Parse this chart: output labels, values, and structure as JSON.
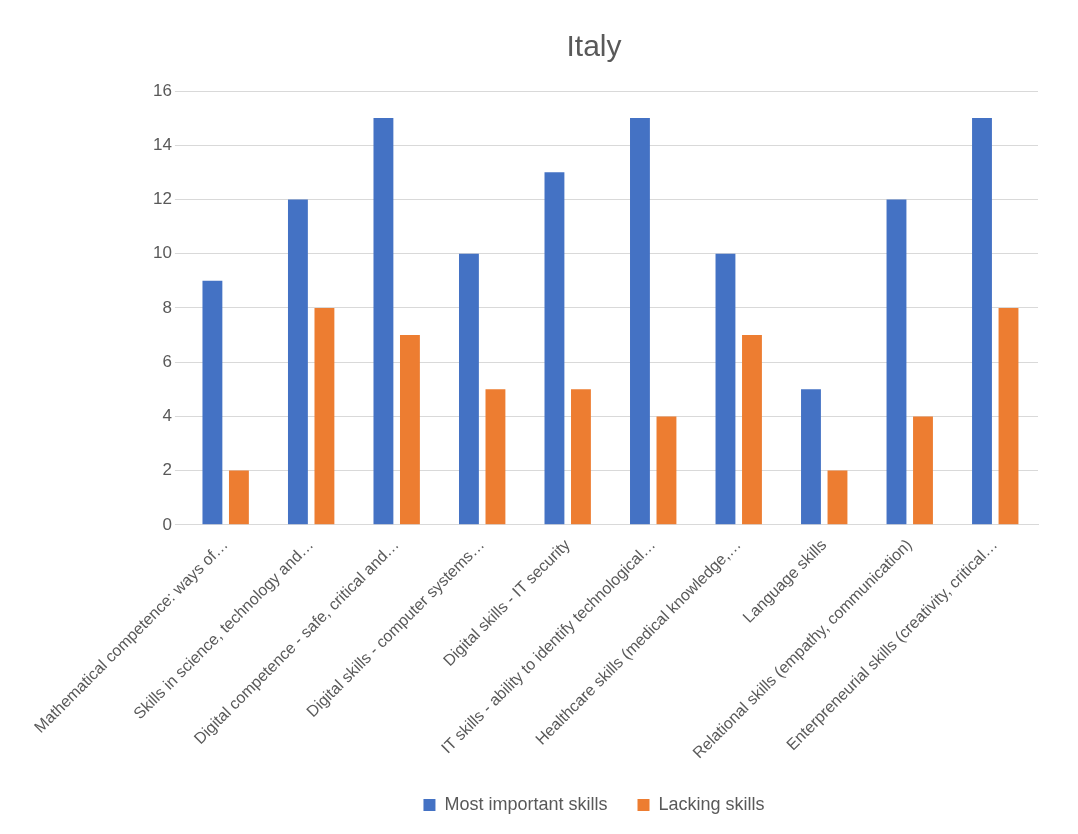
{
  "chart_data": {
    "type": "bar",
    "title": "Italy",
    "categories": [
      "Mathematical competence: ways of…",
      "Skills in science, technology and…",
      "Digital competence - safe, critical and…",
      "Digital skills - computer systems…",
      "Digital skills - IT security",
      "IT skills - ability to identify technological…",
      "Healthcare skills (medical knowledge,…",
      "Language skills",
      "Relational skills (empathy, communication)",
      "Enterpreneurial skills (creativity, critical…"
    ],
    "series": [
      {
        "name": "Most important skills",
        "color": "#4472c4",
        "values": [
          9,
          12,
          15,
          10,
          13,
          15,
          10,
          5,
          12,
          15
        ]
      },
      {
        "name": "Lacking skills",
        "color": "#ed7d31",
        "values": [
          2,
          8,
          7,
          5,
          5,
          4,
          7,
          2,
          4,
          8
        ]
      }
    ],
    "ylim": [
      0,
      16
    ],
    "yticks": [
      0,
      2,
      4,
      6,
      8,
      10,
      12,
      14,
      16
    ],
    "grid": "y",
    "legend": "bottom"
  }
}
